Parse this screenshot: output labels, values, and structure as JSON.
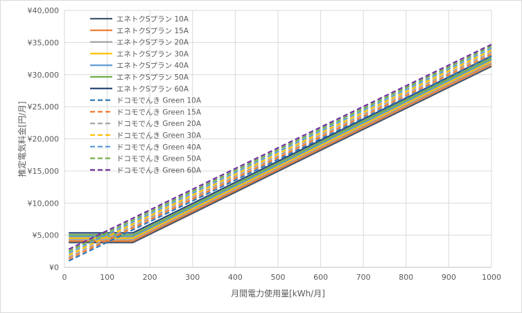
{
  "chart_data": {
    "type": "line",
    "title": "",
    "xlabel": "月間電力使用量[kWh/月]",
    "ylabel": "推定電気料金[円/月]",
    "xlim": [
      0,
      1000
    ],
    "ylim": [
      0,
      40000
    ],
    "x_ticks": [
      "0",
      "100",
      "200",
      "300",
      "400",
      "500",
      "600",
      "700",
      "800",
      "900",
      "1000"
    ],
    "y_ticks": [
      "¥0",
      "¥5,000",
      "¥10,000",
      "¥15,000",
      "¥20,000",
      "¥25,000",
      "¥30,000",
      "¥35,000",
      "¥40,000"
    ],
    "grid": true,
    "legend_position": "top-left (inside plot)",
    "series": [
      {
        "name": "エネトクSプラン 10A",
        "color": "#44546a",
        "dash": "solid",
        "x": [
          10,
          140,
          160,
          1000
        ],
        "y": [
          3850,
          3850,
          3850,
          31300
        ]
      },
      {
        "name": "エネトクSプラン 15A",
        "color": "#ed7d31",
        "dash": "solid",
        "x": [
          10,
          140,
          160,
          1000
        ],
        "y": [
          4100,
          4100,
          4100,
          31600
        ]
      },
      {
        "name": "エネトクSプラン 20A",
        "color": "#a5a5a5",
        "dash": "solid",
        "x": [
          10,
          140,
          160,
          1000
        ],
        "y": [
          4350,
          4350,
          4350,
          31850
        ]
      },
      {
        "name": "エネトクSプラン 30A",
        "color": "#ffc000",
        "dash": "solid",
        "x": [
          10,
          140,
          160,
          1000
        ],
        "y": [
          4550,
          4550,
          4550,
          32100
        ]
      },
      {
        "name": "エネトクSプラン 40A",
        "color": "#5b9bd5",
        "dash": "solid",
        "x": [
          10,
          140,
          160,
          1000
        ],
        "y": [
          4800,
          4800,
          4800,
          32350
        ]
      },
      {
        "name": "エネトクSプラン 50A",
        "color": "#70ad47",
        "dash": "solid",
        "x": [
          10,
          140,
          160,
          1000
        ],
        "y": [
          5050,
          5050,
          5050,
          32600
        ]
      },
      {
        "name": "エネトクSプラン 60A",
        "color": "#264478",
        "dash": "solid",
        "x": [
          10,
          140,
          160,
          1000
        ],
        "y": [
          5350,
          5350,
          5350,
          32900
        ]
      },
      {
        "name": "ドコモでんき Green 10A",
        "color": "#2e75b6",
        "dash": "dashed",
        "x": [
          10,
          1000
        ],
        "y": [
          1000,
          32900
        ]
      },
      {
        "name": "ドコモでんき Green 15A",
        "color": "#f4792b",
        "dash": "dashed",
        "x": [
          10,
          1000
        ],
        "y": [
          1300,
          33200
        ]
      },
      {
        "name": "ドコモでんき Green 20A",
        "color": "#a5a5a5",
        "dash": "dashed",
        "x": [
          10,
          1000
        ],
        "y": [
          1600,
          33500
        ]
      },
      {
        "name": "ドコモでんき Green 30A",
        "color": "#ffc000",
        "dash": "dashed",
        "x": [
          10,
          1000
        ],
        "y": [
          1900,
          33800
        ]
      },
      {
        "name": "ドコモでんき Green 40A",
        "color": "#5b9bd5",
        "dash": "dashed",
        "x": [
          10,
          1000
        ],
        "y": [
          2200,
          34100
        ]
      },
      {
        "name": "ドコモでんき Green 50A",
        "color": "#70ad47",
        "dash": "dashed",
        "x": [
          10,
          1000
        ],
        "y": [
          2500,
          34400
        ]
      },
      {
        "name": "ドコモでんき Green 60A",
        "color": "#7030a0",
        "dash": "dashed",
        "x": [
          10,
          1000
        ],
        "y": [
          2800,
          34700
        ]
      }
    ]
  }
}
